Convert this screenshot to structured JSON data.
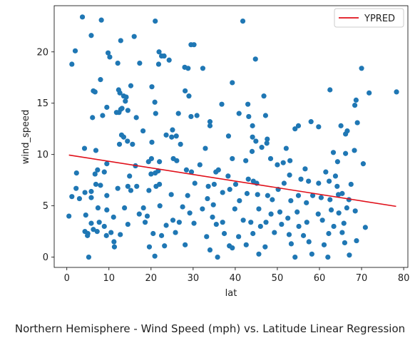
{
  "chart_data": {
    "type": "scatter",
    "xlabel": "lat",
    "ylabel": "wind_speed",
    "xlim": [
      -3,
      81
    ],
    "ylim": [
      -1,
      24.5
    ],
    "xticks": [
      0,
      10,
      20,
      30,
      40,
      50,
      60,
      70,
      80
    ],
    "yticks": [
      0,
      5,
      10,
      15,
      20
    ],
    "grid": false,
    "legend_position": "top-right",
    "point_color": "#1f77b4",
    "line_color": "#e0101a",
    "regression": {
      "name": "YPRED",
      "x": [
        0.5,
        78.2
      ],
      "y": [
        9.95,
        4.95
      ]
    },
    "points": [
      [
        3.7,
        23.4
      ],
      [
        8.2,
        23.1
      ],
      [
        21.0,
        23.0
      ],
      [
        41.8,
        23.0
      ],
      [
        5.8,
        21.6
      ],
      [
        16.0,
        21.5
      ],
      [
        12.8,
        21.1
      ],
      [
        2.0,
        20.1
      ],
      [
        9.8,
        19.9
      ],
      [
        10.2,
        19.5
      ],
      [
        21.9,
        20.0
      ],
      [
        22.5,
        19.6
      ],
      [
        23.1,
        19.6
      ],
      [
        29.5,
        20.7
      ],
      [
        30.2,
        20.7
      ],
      [
        44.8,
        19.3
      ],
      [
        1.2,
        18.8
      ],
      [
        12.1,
        18.9
      ],
      [
        17.3,
        18.9
      ],
      [
        21.8,
        18.8
      ],
      [
        24.3,
        19.2
      ],
      [
        28.0,
        18.5
      ],
      [
        28.8,
        18.4
      ],
      [
        32.3,
        18.4
      ],
      [
        70.0,
        18.4
      ],
      [
        8.0,
        17.3
      ],
      [
        15.2,
        16.7
      ],
      [
        20.2,
        16.6
      ],
      [
        39.3,
        17.0
      ],
      [
        6.3,
        16.2
      ],
      [
        6.7,
        16.1
      ],
      [
        12.3,
        16.3
      ],
      [
        12.6,
        16.0
      ],
      [
        28.1,
        16.2
      ],
      [
        29.0,
        15.7
      ],
      [
        46.8,
        15.7
      ],
      [
        62.5,
        16.3
      ],
      [
        71.8,
        16.0
      ],
      [
        78.3,
        16.1
      ],
      [
        13.5,
        15.7
      ],
      [
        14.1,
        15.6
      ],
      [
        13.9,
        15.2
      ],
      [
        20.9,
        15.1
      ],
      [
        36.8,
        14.9
      ],
      [
        43.0,
        14.9
      ],
      [
        9.5,
        14.6
      ],
      [
        12.8,
        14.4
      ],
      [
        12.4,
        14.1
      ],
      [
        11.8,
        14.1
      ],
      [
        13.1,
        14.5
      ],
      [
        14.5,
        14.3
      ],
      [
        26.5,
        14.0
      ],
      [
        29.5,
        13.7
      ],
      [
        30.9,
        13.8
      ],
      [
        34.0,
        13.2
      ],
      [
        40.9,
        14.0
      ],
      [
        43.2,
        13.7
      ],
      [
        47.2,
        13.8
      ],
      [
        6.1,
        13.6
      ],
      [
        8.5,
        13.8
      ],
      [
        16.5,
        13.6
      ],
      [
        21.1,
        14.0
      ],
      [
        58.0,
        13.2
      ],
      [
        65.1,
        12.8
      ],
      [
        68.7,
        15.3
      ],
      [
        68.4,
        14.8
      ],
      [
        69.0,
        13.1
      ],
      [
        34.0,
        12.8
      ],
      [
        44.1,
        12.8
      ],
      [
        54.2,
        12.5
      ],
      [
        55.0,
        12.8
      ],
      [
        59.8,
        12.7
      ],
      [
        66.6,
        12.3
      ],
      [
        66.2,
        12.0
      ],
      [
        18.1,
        12.3
      ],
      [
        13.0,
        11.9
      ],
      [
        13.5,
        11.7
      ],
      [
        23.6,
        11.9
      ],
      [
        25.1,
        12.4
      ],
      [
        26.0,
        11.8
      ],
      [
        20.2,
        11.2
      ],
      [
        24.9,
        11.7
      ],
      [
        38.4,
        11.8
      ],
      [
        44.1,
        11.7
      ],
      [
        44.9,
        11.3
      ],
      [
        47.6,
        11.5
      ],
      [
        12.5,
        11.0
      ],
      [
        14.4,
        11.3
      ],
      [
        27.0,
        11.0
      ],
      [
        15.6,
        11.0
      ],
      [
        46.3,
        10.7
      ],
      [
        47.5,
        11.1
      ],
      [
        52.1,
        10.6
      ],
      [
        4.2,
        10.6
      ],
      [
        6.9,
        10.4
      ],
      [
        32.9,
        10.6
      ],
      [
        63.3,
        10.2
      ],
      [
        66.2,
        10.1
      ],
      [
        68.3,
        10.4
      ],
      [
        44.0,
        10.3
      ],
      [
        20.1,
        9.6
      ],
      [
        22.0,
        9.3
      ],
      [
        19.4,
        9.3
      ],
      [
        16.3,
        8.9
      ],
      [
        9.5,
        9.1
      ],
      [
        25.3,
        9.6
      ],
      [
        26.1,
        9.4
      ],
      [
        48.4,
        9.6
      ],
      [
        53.0,
        9.4
      ],
      [
        31.6,
        9.0
      ],
      [
        36.0,
        8.5
      ],
      [
        39.3,
        9.6
      ],
      [
        42.5,
        9.4
      ],
      [
        64.3,
        9.3
      ],
      [
        70.4,
        9.1
      ],
      [
        50.0,
        9.0
      ],
      [
        51.4,
        9.2
      ],
      [
        56.6,
        8.6
      ],
      [
        7.3,
        8.5
      ],
      [
        8.9,
        8.3
      ],
      [
        2.3,
        8.2
      ],
      [
        6.7,
        8.1
      ],
      [
        20.0,
        8.1
      ],
      [
        21.0,
        8.2
      ],
      [
        21.7,
        8.4
      ],
      [
        14.9,
        7.9
      ],
      [
        28.4,
        8.5
      ],
      [
        29.6,
        8.3
      ],
      [
        35.4,
        8.3
      ],
      [
        38.3,
        7.9
      ],
      [
        43.1,
        7.6
      ],
      [
        44.3,
        7.4
      ],
      [
        45.1,
        7.2
      ],
      [
        51.6,
        7.2
      ],
      [
        52.9,
        8.0
      ],
      [
        55.6,
        7.6
      ],
      [
        57.4,
        7.4
      ],
      [
        61.5,
        8.3
      ],
      [
        63.8,
        7.9
      ],
      [
        67.5,
        7.1
      ],
      [
        62.3,
        7.4
      ],
      [
        59.8,
        7.2
      ],
      [
        64.2,
        6.9
      ],
      [
        35.0,
        7.1
      ],
      [
        40.1,
        7.1
      ],
      [
        33.6,
        6.9
      ],
      [
        22.0,
        7.1
      ],
      [
        16.6,
        6.9
      ],
      [
        14.5,
        6.9
      ],
      [
        6.9,
        7.1
      ],
      [
        8.0,
        7.0
      ],
      [
        12.1,
        6.7
      ],
      [
        5.8,
        6.4
      ],
      [
        4.3,
        6.3
      ],
      [
        2.2,
        6.7
      ],
      [
        1.2,
        5.9
      ],
      [
        3.0,
        5.7
      ],
      [
        5.8,
        5.8
      ],
      [
        9.5,
        6.0
      ],
      [
        15.2,
        6.5
      ],
      [
        19.5,
        6.5
      ],
      [
        21.2,
        6.9
      ],
      [
        24.8,
        6.1
      ],
      [
        28.7,
        6.0
      ],
      [
        30.4,
        7.2
      ],
      [
        33.4,
        5.7
      ],
      [
        37.0,
        6.3
      ],
      [
        38.7,
        6.6
      ],
      [
        41.0,
        5.5
      ],
      [
        42.8,
        6.2
      ],
      [
        45.3,
        6.1
      ],
      [
        47.7,
        6.0
      ],
      [
        48.8,
        5.6
      ],
      [
        50.2,
        6.6
      ],
      [
        53.2,
        5.5
      ],
      [
        55.0,
        6.0
      ],
      [
        56.9,
        5.3
      ],
      [
        58.4,
        6.0
      ],
      [
        60.4,
        5.8
      ],
      [
        62.5,
        5.6
      ],
      [
        64.5,
        6.1
      ],
      [
        65.4,
        6.2
      ],
      [
        67.0,
        5.6
      ],
      [
        7.4,
        4.8
      ],
      [
        9.5,
        4.6
      ],
      [
        13.7,
        4.8
      ],
      [
        18.2,
        4.8
      ],
      [
        22.1,
        5.0
      ],
      [
        27.5,
        4.9
      ],
      [
        32.2,
        4.7
      ],
      [
        34.8,
        5.1
      ],
      [
        39.9,
        4.7
      ],
      [
        45.6,
        4.7
      ],
      [
        48.5,
        4.2
      ],
      [
        50.6,
        4.4
      ],
      [
        54.7,
        4.4
      ],
      [
        59.7,
        4.2
      ],
      [
        62.8,
        4.6
      ],
      [
        64.6,
        4.3
      ],
      [
        66.5,
        4.8
      ],
      [
        68.5,
        4.5
      ],
      [
        0.5,
        4.0
      ],
      [
        4.5,
        4.1
      ],
      [
        11.1,
        3.9
      ],
      [
        17.2,
        4.2
      ],
      [
        19.1,
        4.0
      ],
      [
        25.2,
        3.6
      ],
      [
        29.2,
        4.3
      ],
      [
        35.5,
        3.2
      ],
      [
        37.0,
        3.4
      ],
      [
        41.9,
        3.6
      ],
      [
        43.7,
        3.4
      ],
      [
        46.0,
        3.0
      ],
      [
        47.3,
        3.4
      ],
      [
        51.0,
        3.2
      ],
      [
        52.5,
        3.8
      ],
      [
        55.1,
        3.0
      ],
      [
        57.0,
        3.4
      ],
      [
        60.7,
        3.6
      ],
      [
        63.4,
        3.0
      ],
      [
        65.8,
        3.3
      ],
      [
        70.9,
        2.9
      ],
      [
        5.8,
        3.3
      ],
      [
        7.7,
        3.4
      ],
      [
        8.9,
        3.0
      ],
      [
        14.5,
        3.2
      ],
      [
        18.6,
        3.4
      ],
      [
        23.6,
        3.1
      ],
      [
        26.7,
        3.4
      ],
      [
        30.2,
        3.3
      ],
      [
        34.6,
        3.9
      ],
      [
        4.3,
        2.5
      ],
      [
        5.0,
        2.3
      ],
      [
        6.3,
        2.7
      ],
      [
        7.2,
        2.5
      ],
      [
        9.4,
        2.1
      ],
      [
        10.5,
        2.4
      ],
      [
        12.7,
        2.2
      ],
      [
        20.5,
        2.3
      ],
      [
        22.5,
        2.1
      ],
      [
        25.8,
        2.4
      ],
      [
        33.2,
        2.0
      ],
      [
        37.4,
        2.3
      ],
      [
        40.8,
        2.0
      ],
      [
        44.2,
        2.3
      ],
      [
        49.3,
        2.4
      ],
      [
        52.8,
        2.2
      ],
      [
        56.2,
        2.1
      ],
      [
        62.2,
        2.3
      ],
      [
        65.4,
        2.4
      ],
      [
        4.9,
        2.1
      ],
      [
        11.2,
        1.5
      ],
      [
        19.6,
        1.0
      ],
      [
        23.2,
        1.1
      ],
      [
        28.1,
        1.2
      ],
      [
        34.0,
        0.7
      ],
      [
        38.6,
        1.1
      ],
      [
        39.3,
        0.9
      ],
      [
        42.6,
        1.2
      ],
      [
        47.1,
        1.0
      ],
      [
        53.3,
        1.3
      ],
      [
        57.5,
        1.5
      ],
      [
        61.1,
        1.2
      ],
      [
        66.0,
        1.4
      ],
      [
        68.8,
        1.6
      ],
      [
        11.3,
        1.0
      ],
      [
        5.2,
        0.0
      ],
      [
        20.9,
        0.1
      ],
      [
        35.8,
        0.0
      ],
      [
        45.6,
        0.3
      ],
      [
        54.2,
        0.0
      ],
      [
        58.2,
        0.3
      ],
      [
        62.0,
        0.0
      ],
      [
        67.1,
        0.2
      ]
    ]
  }
}
